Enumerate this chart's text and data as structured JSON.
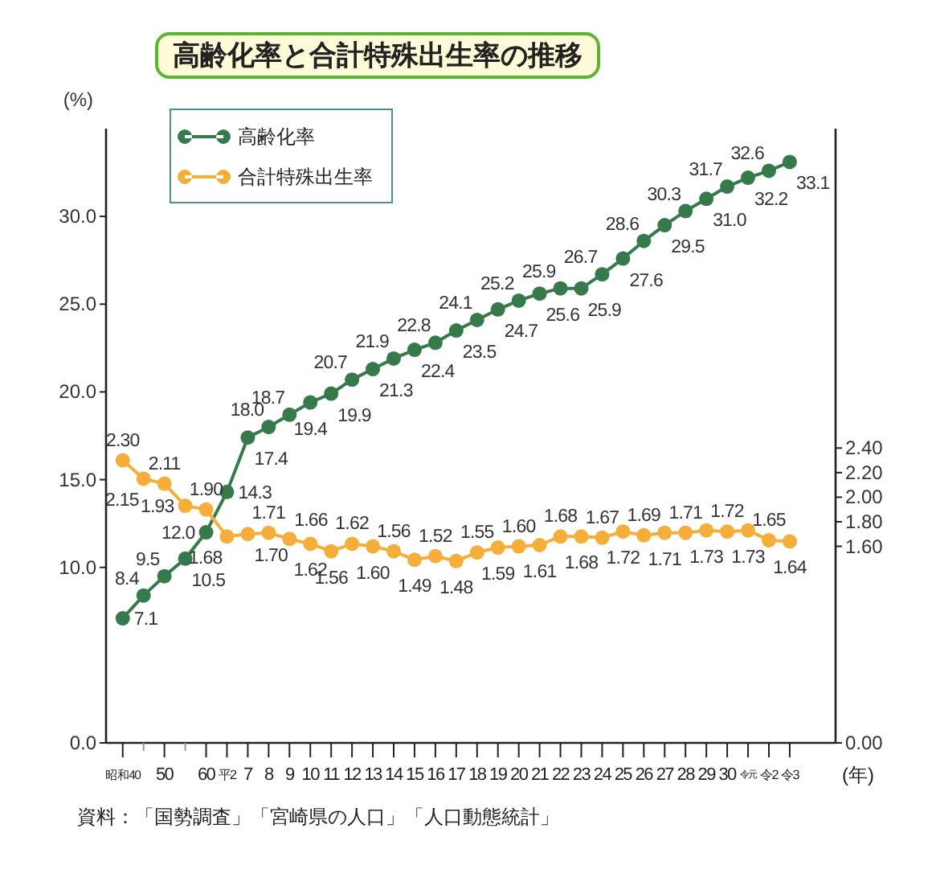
{
  "chart_data": {
    "type": "line",
    "title": "高齢化率と合計特殊出生率の推移",
    "ylabel": "(%)",
    "xlabel": "(年)",
    "categories": [
      "昭和40",
      null,
      "50",
      null,
      "60",
      "平2",
      "7",
      "8",
      "9",
      "10",
      "11",
      "12",
      "13",
      "14",
      "15",
      "16",
      "17",
      "18",
      "19",
      "20",
      "21",
      "22",
      "23",
      "24",
      "25",
      "26",
      "27",
      "28",
      "29",
      "30",
      "令元",
      "令2",
      "令3"
    ],
    "series": [
      {
        "name": "高齢化率",
        "color": "#367a4c",
        "values": [
          7.1,
          8.4,
          9.5,
          10.5,
          12.0,
          14.3,
          17.4,
          18.0,
          18.7,
          19.4,
          19.9,
          20.7,
          21.3,
          21.9,
          22.4,
          22.8,
          23.5,
          24.1,
          24.7,
          25.2,
          25.6,
          25.9,
          25.9,
          26.7,
          27.6,
          28.6,
          29.5,
          30.3,
          31.0,
          31.7,
          32.2,
          32.6,
          33.1
        ],
        "value_labels": [
          "7.1",
          "8.4",
          "9.5",
          "10.5",
          "12.0",
          "14.3",
          "17.4",
          "18.0",
          "18.7",
          "19.4",
          "19.9",
          "20.7",
          "21.3",
          "21.9",
          "22.4",
          "22.8",
          "23.5",
          "24.1",
          "24.7",
          "25.2",
          "25.6",
          "25.9",
          "25.9",
          "26.7",
          "27.6",
          "28.6",
          "29.5",
          "30.3",
          "31.0",
          "31.7",
          "32.2",
          "32.6",
          "33.1"
        ]
      },
      {
        "name": "合計特殊出生率",
        "color": "#f5ae3a",
        "axis": "y2",
        "values": [
          2.3,
          2.15,
          2.11,
          1.93,
          1.9,
          1.68,
          1.7,
          1.71,
          1.66,
          1.62,
          1.56,
          1.62,
          1.6,
          1.56,
          1.49,
          1.52,
          1.48,
          1.55,
          1.59,
          1.6,
          1.61,
          1.68,
          1.68,
          1.67,
          1.72,
          1.69,
          1.71,
          1.71,
          1.73,
          1.72,
          1.73,
          1.65,
          1.64
        ],
        "value_labels": [
          "2.30",
          "2.15",
          "2.11",
          "1.93",
          "1.90",
          "1.68",
          "1.70",
          "1.71",
          "1.66",
          "1.62",
          "1.56",
          "1.62",
          "1.60",
          "1.56",
          "1.49",
          "1.52",
          "1.48",
          "1.55",
          "1.59",
          "1.60",
          "1.61",
          "1.68",
          "1.68",
          "1.67",
          "1.72",
          "1.69",
          "1.71",
          "1.71",
          "1.73",
          "1.72",
          "1.73",
          "1.65",
          "1.64"
        ]
      }
    ],
    "ylim": [
      0,
      35
    ],
    "yticks": [
      {
        "value": 0,
        "label": "0.0"
      },
      {
        "value": 10,
        "label": "10.0"
      },
      {
        "value": 15,
        "label": "15.0"
      },
      {
        "value": 20,
        "label": "20.0"
      },
      {
        "value": 25,
        "label": "25.0"
      },
      {
        "value": 30,
        "label": "30.0"
      }
    ],
    "y2lim": [
      0,
      5
    ],
    "y2ticks": [
      {
        "value": 0,
        "label": "0.00"
      },
      {
        "value": 1.6,
        "label": "1.60"
      },
      {
        "value": 1.8,
        "label": "1.80"
      },
      {
        "value": 2.0,
        "label": "2.00"
      },
      {
        "value": 2.2,
        "label": "2.20"
      },
      {
        "value": 2.4,
        "label": "2.40"
      }
    ],
    "marker": "circle",
    "legend": "top left",
    "grid": false,
    "annotations": [
      "資料：「国勢調査」「宮崎県の人口」「人口動態統計」"
    ]
  }
}
